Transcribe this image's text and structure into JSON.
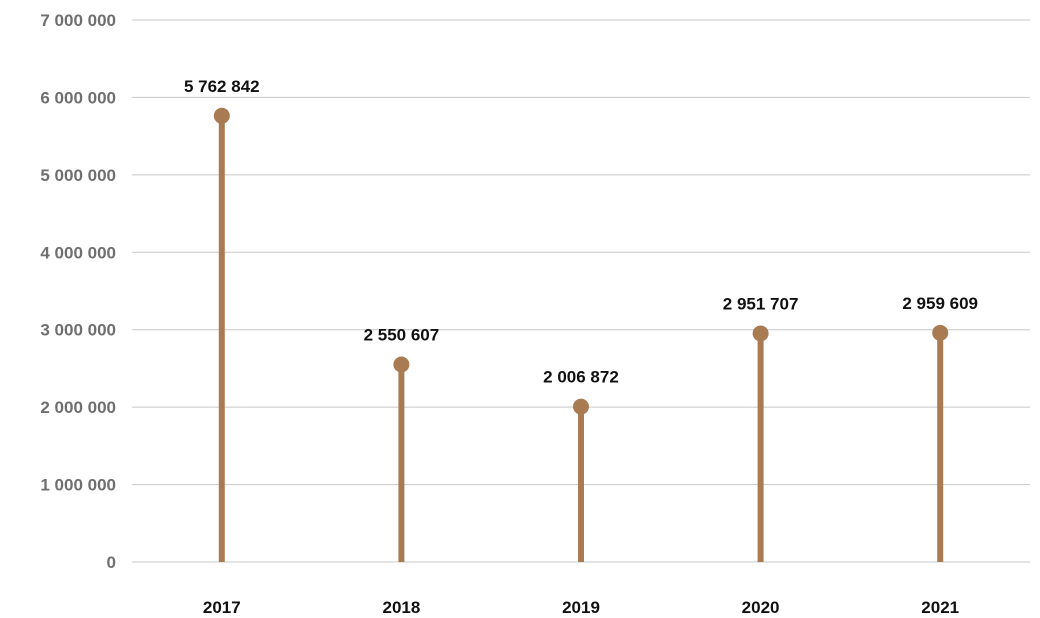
{
  "chart_data": {
    "type": "lollipop",
    "title": "",
    "xlabel": "",
    "ylabel": "",
    "categories": [
      "2017",
      "2018",
      "2019",
      "2020",
      "2021"
    ],
    "values": [
      5762842,
      2550607,
      2006872,
      2951707,
      2959609
    ],
    "value_labels": [
      "5 762 842",
      "2 550 607",
      "2 006 872",
      "2 951 707",
      "2 959 609"
    ],
    "ylim": [
      0,
      7000000
    ],
    "yticks": [
      0,
      1000000,
      2000000,
      3000000,
      4000000,
      5000000,
      6000000,
      7000000
    ],
    "ytick_labels": [
      "0",
      "1 000 000",
      "2 000 000",
      "3 000 000",
      "4 000 000",
      "5 000 000",
      "6 000 000",
      "7 000 000"
    ],
    "grid": true,
    "legend": "none",
    "colors": {
      "stem": "#a87b52",
      "marker": "#a87b52",
      "grid": "#c8c8c8"
    }
  }
}
